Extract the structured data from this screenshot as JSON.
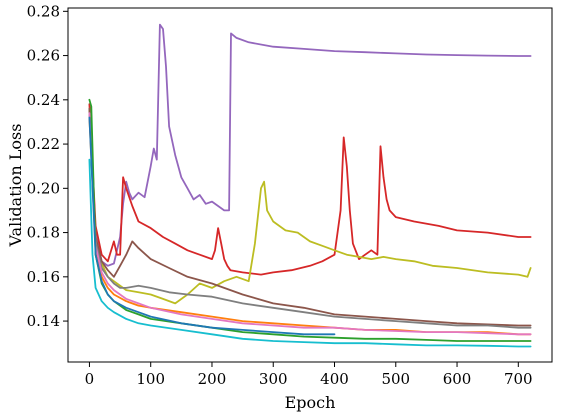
{
  "chart_data": {
    "type": "line",
    "title": "",
    "xlabel": "Epoch",
    "ylabel": "Validation Loss",
    "xlim": [
      -35,
      755
    ],
    "ylim": [
      0.1215,
      0.2815
    ],
    "xticks": [
      0,
      100,
      200,
      300,
      400,
      500,
      600,
      700
    ],
    "yticks": [
      0.14,
      0.16,
      0.18,
      0.2,
      0.22,
      0.24,
      0.26,
      0.28
    ],
    "xtick_labels": [
      "0",
      "100",
      "200",
      "300",
      "400",
      "500",
      "600",
      "700"
    ],
    "ytick_labels": [
      "0.14",
      "0.16",
      "0.18",
      "0.20",
      "0.22",
      "0.24",
      "0.26",
      "0.28"
    ],
    "grid": false,
    "legend": "none",
    "series": [
      {
        "color": "#9467bd",
        "x": [
          0,
          10,
          20,
          30,
          40,
          50,
          55,
          60,
          65,
          70,
          80,
          90,
          100,
          105,
          110,
          115,
          120,
          125,
          130,
          140,
          150,
          160,
          170,
          180,
          190,
          200,
          210,
          220,
          228,
          231,
          240,
          260,
          300,
          350,
          400,
          450,
          500,
          550,
          600,
          650,
          700,
          720
        ],
        "y": [
          0.235,
          0.18,
          0.167,
          0.165,
          0.166,
          0.178,
          0.193,
          0.203,
          0.198,
          0.195,
          0.198,
          0.196,
          0.21,
          0.218,
          0.213,
          0.274,
          0.272,
          0.255,
          0.228,
          0.215,
          0.205,
          0.2,
          0.195,
          0.197,
          0.193,
          0.194,
          0.192,
          0.19,
          0.19,
          0.27,
          0.268,
          0.266,
          0.264,
          0.263,
          0.262,
          0.2615,
          0.261,
          0.2605,
          0.2602,
          0.26,
          0.2598,
          0.2598
        ]
      },
      {
        "color": "#d62728",
        "x": [
          0,
          10,
          20,
          30,
          40,
          45,
          50,
          55,
          60,
          70,
          80,
          100,
          120,
          140,
          160,
          180,
          200,
          205,
          210,
          215,
          220,
          225,
          230,
          250,
          280,
          300,
          330,
          360,
          380,
          400,
          410,
          415,
          420,
          425,
          430,
          440,
          450,
          460,
          470,
          475,
          480,
          485,
          490,
          500,
          530,
          570,
          600,
          650,
          700,
          720
        ],
        "y": [
          0.238,
          0.183,
          0.17,
          0.167,
          0.176,
          0.17,
          0.17,
          0.205,
          0.2,
          0.192,
          0.185,
          0.182,
          0.178,
          0.175,
          0.172,
          0.17,
          0.168,
          0.172,
          0.182,
          0.175,
          0.168,
          0.165,
          0.163,
          0.162,
          0.161,
          0.162,
          0.163,
          0.165,
          0.167,
          0.17,
          0.19,
          0.223,
          0.21,
          0.19,
          0.175,
          0.168,
          0.17,
          0.172,
          0.17,
          0.219,
          0.205,
          0.195,
          0.19,
          0.187,
          0.185,
          0.183,
          0.181,
          0.18,
          0.178,
          0.178
        ]
      },
      {
        "color": "#bcbd22",
        "x": [
          0,
          10,
          20,
          30,
          40,
          60,
          80,
          100,
          120,
          140,
          160,
          180,
          200,
          220,
          240,
          260,
          270,
          280,
          285,
          290,
          300,
          320,
          340,
          360,
          380,
          400,
          420,
          440,
          460,
          480,
          500,
          530,
          560,
          600,
          650,
          700,
          715,
          720
        ],
        "y": [
          0.236,
          0.178,
          0.166,
          0.16,
          0.158,
          0.154,
          0.153,
          0.152,
          0.15,
          0.148,
          0.152,
          0.157,
          0.155,
          0.158,
          0.16,
          0.158,
          0.175,
          0.2,
          0.203,
          0.19,
          0.185,
          0.181,
          0.18,
          0.176,
          0.174,
          0.172,
          0.17,
          0.169,
          0.168,
          0.169,
          0.168,
          0.167,
          0.165,
          0.164,
          0.162,
          0.161,
          0.16,
          0.164
        ]
      },
      {
        "color": "#8c564b",
        "x": [
          0,
          10,
          20,
          30,
          40,
          50,
          60,
          70,
          80,
          100,
          130,
          160,
          200,
          250,
          300,
          350,
          400,
          450,
          500,
          550,
          600,
          650,
          700,
          720
        ],
        "y": [
          0.236,
          0.178,
          0.167,
          0.163,
          0.16,
          0.165,
          0.17,
          0.176,
          0.173,
          0.168,
          0.164,
          0.16,
          0.157,
          0.152,
          0.148,
          0.146,
          0.143,
          0.142,
          0.141,
          0.14,
          0.139,
          0.1385,
          0.138,
          0.138
        ]
      },
      {
        "color": "#7f7f7f",
        "x": [
          0,
          10,
          20,
          30,
          40,
          50,
          60,
          80,
          100,
          130,
          160,
          200,
          250,
          300,
          350,
          400,
          450,
          500,
          550,
          600,
          650,
          700,
          720
        ],
        "y": [
          0.234,
          0.176,
          0.164,
          0.16,
          0.157,
          0.155,
          0.155,
          0.156,
          0.155,
          0.153,
          0.152,
          0.151,
          0.148,
          0.146,
          0.144,
          0.142,
          0.141,
          0.14,
          0.139,
          0.138,
          0.138,
          0.137,
          0.137
        ]
      },
      {
        "color": "#ff7f0e",
        "x": [
          0,
          10,
          20,
          30,
          40,
          60,
          80,
          100,
          150,
          200,
          250,
          300,
          350,
          400,
          450,
          500,
          550,
          600,
          650,
          700,
          720
        ],
        "y": [
          0.232,
          0.172,
          0.16,
          0.155,
          0.152,
          0.149,
          0.147,
          0.146,
          0.144,
          0.142,
          0.14,
          0.139,
          0.138,
          0.137,
          0.136,
          0.136,
          0.135,
          0.135,
          0.135,
          0.134,
          0.134
        ]
      },
      {
        "color": "#e377c2",
        "x": [
          0,
          10,
          20,
          30,
          40,
          60,
          80,
          100,
          150,
          200,
          250,
          300,
          350,
          400,
          450,
          500,
          550,
          600,
          650,
          700,
          720
        ],
        "y": [
          0.234,
          0.174,
          0.162,
          0.157,
          0.154,
          0.15,
          0.148,
          0.146,
          0.143,
          0.141,
          0.139,
          0.138,
          0.137,
          0.137,
          0.136,
          0.1355,
          0.135,
          0.135,
          0.1345,
          0.134,
          0.134
        ]
      },
      {
        "color": "#2ca02c",
        "x": [
          0,
          3,
          10,
          20,
          30,
          40,
          60,
          80,
          100,
          150,
          200,
          250,
          300,
          350,
          400,
          450,
          500,
          550,
          600,
          650,
          700,
          720
        ],
        "y": [
          0.24,
          0.237,
          0.17,
          0.157,
          0.152,
          0.149,
          0.145,
          0.143,
          0.141,
          0.139,
          0.137,
          0.135,
          0.134,
          0.133,
          0.1325,
          0.132,
          0.132,
          0.1315,
          0.131,
          0.131,
          0.131,
          0.131
        ]
      },
      {
        "color": "#1f77b4",
        "x": [
          0,
          10,
          20,
          30,
          40,
          60,
          80,
          100,
          150,
          200,
          250,
          300,
          350,
          400
        ],
        "y": [
          0.232,
          0.17,
          0.158,
          0.152,
          0.149,
          0.146,
          0.144,
          0.142,
          0.139,
          0.137,
          0.136,
          0.135,
          0.134,
          0.134
        ]
      },
      {
        "color": "#17becf",
        "x": [
          0,
          5,
          10,
          20,
          30,
          40,
          60,
          80,
          100,
          150,
          200,
          250,
          300,
          350,
          400,
          450,
          500,
          550,
          600,
          650,
          700,
          720
        ],
        "y": [
          0.213,
          0.17,
          0.155,
          0.149,
          0.146,
          0.144,
          0.141,
          0.139,
          0.138,
          0.136,
          0.134,
          0.132,
          0.131,
          0.1305,
          0.13,
          0.13,
          0.1295,
          0.129,
          0.129,
          0.1288,
          0.1285,
          0.1285
        ]
      }
    ]
  }
}
